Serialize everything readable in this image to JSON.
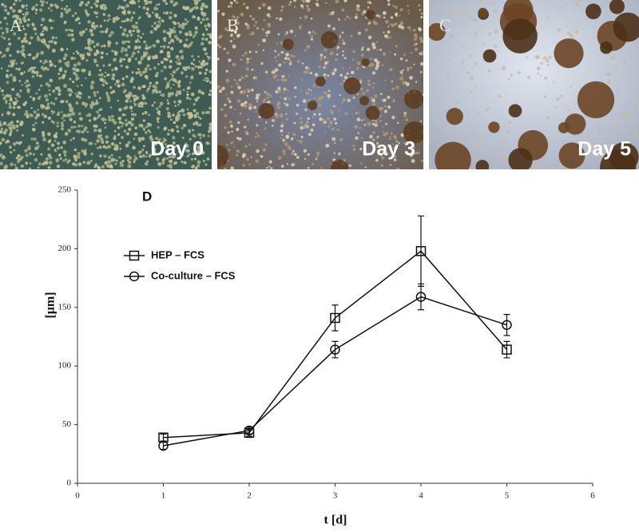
{
  "panels": [
    {
      "letter": "A",
      "caption": "Day 0"
    },
    {
      "letter": "B",
      "caption": "Day 3"
    },
    {
      "letter": "C",
      "caption": "Day 5"
    }
  ],
  "chart_data": {
    "type": "line",
    "panel_label": "D",
    "xlabel": "t [d]",
    "ylabel": "[μm]",
    "x": [
      1,
      2,
      3,
      4,
      5
    ],
    "series": [
      {
        "name": "HEP – FCS",
        "color": "#111111",
        "marker": "square",
        "values": [
          39,
          43,
          141,
          198,
          114
        ],
        "errors": [
          3,
          3,
          11,
          30,
          7
        ]
      },
      {
        "name": "Co-culture – FCS",
        "color": "#111111",
        "marker": "circle",
        "values": [
          32,
          45,
          114,
          159,
          135
        ],
        "errors": [
          3,
          3,
          7,
          11,
          9
        ]
      }
    ],
    "xlim": [
      0,
      6
    ],
    "xticks": [
      0,
      1,
      2,
      3,
      4,
      5,
      6
    ],
    "ylim": [
      0,
      250
    ],
    "yticks": [
      0,
      50,
      100,
      150,
      200,
      250
    ],
    "legend": "upper left"
  }
}
